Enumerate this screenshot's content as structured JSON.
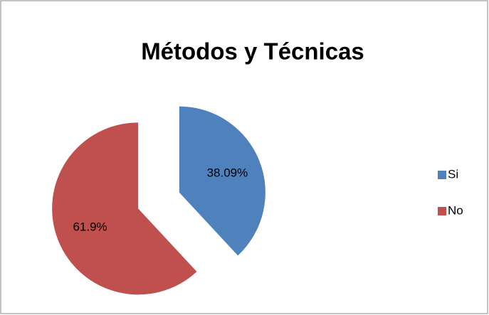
{
  "chart_data": {
    "type": "pie",
    "title": "Métodos y Técnicas",
    "categories": [
      "Si",
      "No"
    ],
    "values": [
      38.09,
      61.9
    ],
    "value_labels": [
      "38.09%",
      "61.9%"
    ],
    "colors": [
      "#4f81bd",
      "#c0504d"
    ],
    "legend": "right"
  }
}
